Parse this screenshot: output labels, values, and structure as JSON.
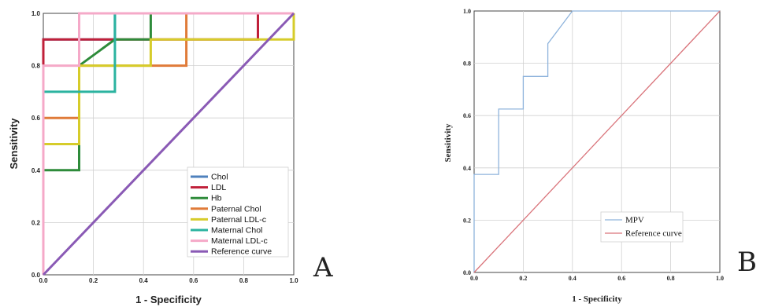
{
  "chart_data": [
    {
      "type": "line",
      "panel_label": "A",
      "xlabel": "1 - Specificity",
      "ylabel": "Sensitivity",
      "xlim": [
        0,
        1
      ],
      "ylim": [
        0,
        1
      ],
      "x_ticks": [
        "0.0",
        "0.2",
        "0.4",
        "0.6",
        "0.8",
        "1.0"
      ],
      "y_ticks": [
        "0.0",
        "0.2",
        "0.4",
        "0.6",
        "0.8",
        "1.0"
      ],
      "grid": true,
      "legend_position": "bottom-right",
      "series": [
        {
          "name": "Chol",
          "color": "#4f81bd",
          "points": [
            [
              0,
              0
            ],
            [
              0,
              0.9
            ],
            [
              0.286,
              0.9
            ],
            [
              0.286,
              1
            ],
            [
              1,
              1
            ]
          ]
        },
        {
          "name": "LDL",
          "color": "#c0203a",
          "points": [
            [
              0,
              0
            ],
            [
              0,
              0.9
            ],
            [
              0.857,
              0.9
            ],
            [
              0.857,
              1
            ],
            [
              1,
              1
            ]
          ]
        },
        {
          "name": "Hb",
          "color": "#2e8b3a",
          "points": [
            [
              0,
              0
            ],
            [
              0,
              0.4
            ],
            [
              0.143,
              0.4
            ],
            [
              0.143,
              0.8
            ],
            [
              0.286,
              0.9
            ],
            [
              0.429,
              0.9
            ],
            [
              0.429,
              1
            ],
            [
              1,
              1
            ]
          ]
        },
        {
          "name": "Paternal Chol",
          "color": "#e07b39",
          "points": [
            [
              0,
              0
            ],
            [
              0,
              0.6
            ],
            [
              0.143,
              0.6
            ],
            [
              0.143,
              0.8
            ],
            [
              0.571,
              0.8
            ],
            [
              0.571,
              1
            ],
            [
              1,
              1
            ]
          ]
        },
        {
          "name": "Paternal LDL-c",
          "color": "#d6cc2a",
          "points": [
            [
              0,
              0
            ],
            [
              0,
              0.5
            ],
            [
              0.143,
              0.5
            ],
            [
              0.143,
              0.8
            ],
            [
              0.429,
              0.8
            ],
            [
              0.429,
              0.9
            ],
            [
              1,
              0.9
            ],
            [
              1,
              1
            ]
          ]
        },
        {
          "name": "Maternal Chol",
          "color": "#2bb3a0",
          "points": [
            [
              0,
              0
            ],
            [
              0,
              0.7
            ],
            [
              0.286,
              0.7
            ],
            [
              0.286,
              1
            ],
            [
              1,
              1
            ]
          ]
        },
        {
          "name": "Maternal LDL-c",
          "color": "#f5a9c8",
          "points": [
            [
              0,
              0
            ],
            [
              0,
              0.8
            ],
            [
              0.143,
              0.8
            ],
            [
              0.143,
              1
            ],
            [
              1,
              1
            ]
          ]
        },
        {
          "name": "Reference curve",
          "color": "#8a5ab5",
          "points": [
            [
              0,
              0
            ],
            [
              1,
              1
            ]
          ]
        }
      ]
    },
    {
      "type": "line",
      "panel_label": "B",
      "xlabel": "1 - Specificity",
      "ylabel": "Sensitivity",
      "xlim": [
        0,
        1
      ],
      "ylim": [
        0,
        1
      ],
      "x_ticks": [
        "0.0",
        "0.2",
        "0.4",
        "0.6",
        "0.8",
        "1.0"
      ],
      "y_ticks": [
        "0.0",
        "0.2",
        "0.4",
        "0.6",
        "0.8",
        "1.0"
      ],
      "grid": true,
      "legend_position": "bottom-right",
      "series": [
        {
          "name": "MPV",
          "color": "#8fb4dc",
          "points": [
            [
              0,
              0
            ],
            [
              0,
              0.375
            ],
            [
              0.1,
              0.375
            ],
            [
              0.1,
              0.625
            ],
            [
              0.2,
              0.625
            ],
            [
              0.2,
              0.75
            ],
            [
              0.3,
              0.75
            ],
            [
              0.3,
              0.875
            ],
            [
              0.4,
              1
            ],
            [
              1,
              1
            ]
          ]
        },
        {
          "name": "Reference curve",
          "color": "#d9737a",
          "points": [
            [
              0,
              0
            ],
            [
              1,
              1
            ]
          ]
        }
      ]
    }
  ]
}
